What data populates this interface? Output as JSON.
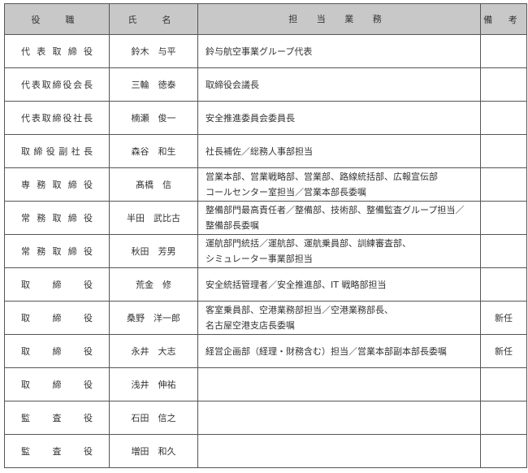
{
  "headers": {
    "role": "役　職",
    "name": "氏　名",
    "duties": "担 当 業 務",
    "notes": "備 考"
  },
  "rows": [
    {
      "role": "代表取締役",
      "name": "鈴木　与平",
      "duties": [
        "鈴与航空事業グループ代表"
      ],
      "notes": ""
    },
    {
      "role": "代表取締役会長",
      "name": "三輪　徳泰",
      "duties": [
        "取締役会議長"
      ],
      "notes": ""
    },
    {
      "role": "代表取締役社長",
      "name": "楠瀬　俊一",
      "duties": [
        "安全推進委員会委員長"
      ],
      "notes": ""
    },
    {
      "role": "取締役副社長",
      "name": "森谷　和生",
      "duties": [
        "社長補佐／総務人事部担当"
      ],
      "notes": ""
    },
    {
      "role": "専務取締役",
      "name": "髙橋　信",
      "duties": [
        "営業本部、営業戦略部、営業部、路線統括部、広報宣伝部",
        "コールセンター室担当／営業本部長委嘱"
      ],
      "notes": ""
    },
    {
      "role": "常務取締役",
      "name": "半田　武比古",
      "duties": [
        "整備部門最高責任者／整備部、技術部、整備監査グループ担当／",
        "整備部長委嘱"
      ],
      "notes": ""
    },
    {
      "role": "常務取締役",
      "name": "秋田　芳男",
      "duties": [
        "運航部門統括／運航部、運航乗員部、訓練審査部、",
        "シミュレーター事業部担当"
      ],
      "notes": ""
    },
    {
      "role": "取締役",
      "name": "荒金　修",
      "duties": [
        "安全統括管理者／安全推進部、IT 戦略部担当"
      ],
      "notes": ""
    },
    {
      "role": "取締役",
      "name": "桑野　洋一郎",
      "duties": [
        "客室乗員部、空港業務部担当／空港業務部長、",
        "名古屋空港支店長委嘱"
      ],
      "notes": "新任"
    },
    {
      "role": "取締役",
      "name": "永井　大志",
      "duties": [
        "経営企画部（経理・財務含む）担当／営業本部副本部長委嘱"
      ],
      "notes": "新任"
    },
    {
      "role": "取締役",
      "name": "浅井　伸祐",
      "duties": [],
      "notes": ""
    },
    {
      "role": "監査役",
      "name": "石田　信之",
      "duties": [],
      "notes": ""
    },
    {
      "role": "監査役",
      "name": "増田　和久",
      "duties": [],
      "notes": ""
    }
  ]
}
